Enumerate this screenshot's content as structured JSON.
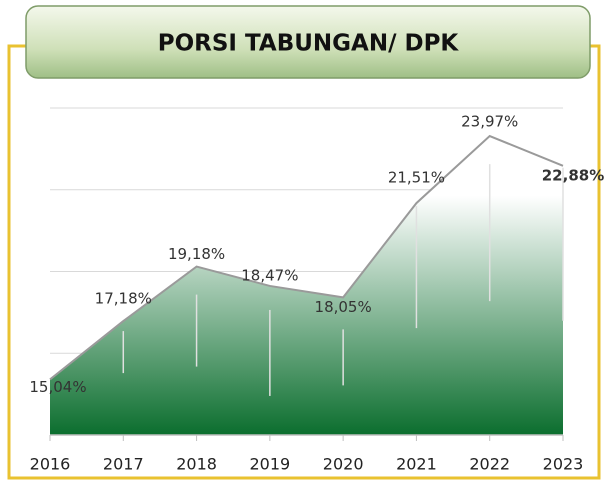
{
  "chart_data": {
    "type": "area",
    "title": "PORSI TABUNGAN/ DPK",
    "categories": [
      "2016",
      "2017",
      "2018",
      "2019",
      "2020",
      "2021",
      "2022",
      "2023"
    ],
    "values": [
      15.04,
      17.18,
      19.18,
      18.47,
      18.05,
      21.51,
      23.97,
      22.88
    ],
    "value_labels": [
      "15,04%",
      "17,18%",
      "19,18%",
      "18,47%",
      "18,05%",
      "21,51%",
      "23,97%",
      "22,88%"
    ],
    "color": "#0b6e2e",
    "ylim": [
      13,
      25
    ],
    "yticks": [
      13,
      16,
      19,
      22,
      25
    ],
    "grid": true
  }
}
